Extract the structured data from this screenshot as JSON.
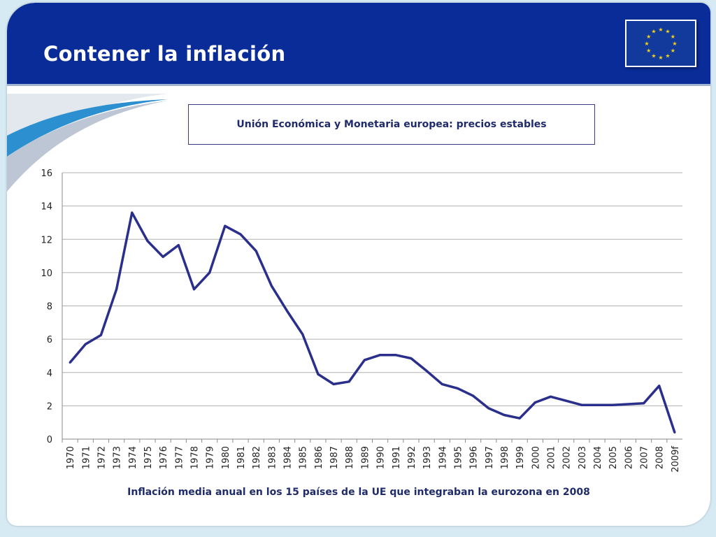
{
  "slide": {
    "title": "Contener la inflación"
  },
  "colors": {
    "header_bg": "#0a2c99",
    "line": "#2b2f8c",
    "flag_star": "#f7d117"
  },
  "icons": {
    "flag": "eu-flag-icon"
  },
  "chart_data": {
    "type": "line",
    "title": "Unión Económica y Monetaria europea: precios estables",
    "caption": "Inflación media anual en los 15 países de la UE que integraban la eurozona en 2008",
    "xlabel": "",
    "ylabel": "",
    "ylim": [
      0,
      16
    ],
    "yticks": [
      0,
      2,
      4,
      6,
      8,
      10,
      12,
      14,
      16
    ],
    "grid": true,
    "categories": [
      "1970",
      "1971",
      "1972",
      "1973",
      "1974",
      "1975",
      "1976",
      "1977",
      "1978",
      "1979",
      "1980",
      "1981",
      "1982",
      "1983",
      "1984",
      "1985",
      "1986",
      "1987",
      "1988",
      "1989",
      "1990",
      "1991",
      "1992",
      "1993",
      "1994",
      "1995",
      "1996",
      "1997",
      "1998",
      "1999",
      "2000",
      "2001",
      "2002",
      "2003",
      "2004",
      "2005",
      "2006",
      "2007",
      "2008",
      "2009f"
    ],
    "values": [
      4.6,
      5.7,
      6.25,
      9.0,
      13.6,
      11.9,
      10.95,
      11.65,
      9.0,
      10.0,
      12.8,
      12.3,
      11.3,
      9.2,
      7.7,
      6.3,
      3.9,
      3.3,
      3.45,
      4.75,
      5.05,
      5.05,
      4.85,
      4.1,
      3.3,
      3.05,
      2.6,
      1.85,
      1.45,
      1.25,
      2.2,
      2.55,
      2.3,
      2.05,
      2.05,
      2.05,
      2.1,
      2.15,
      3.2,
      0.4
    ]
  }
}
